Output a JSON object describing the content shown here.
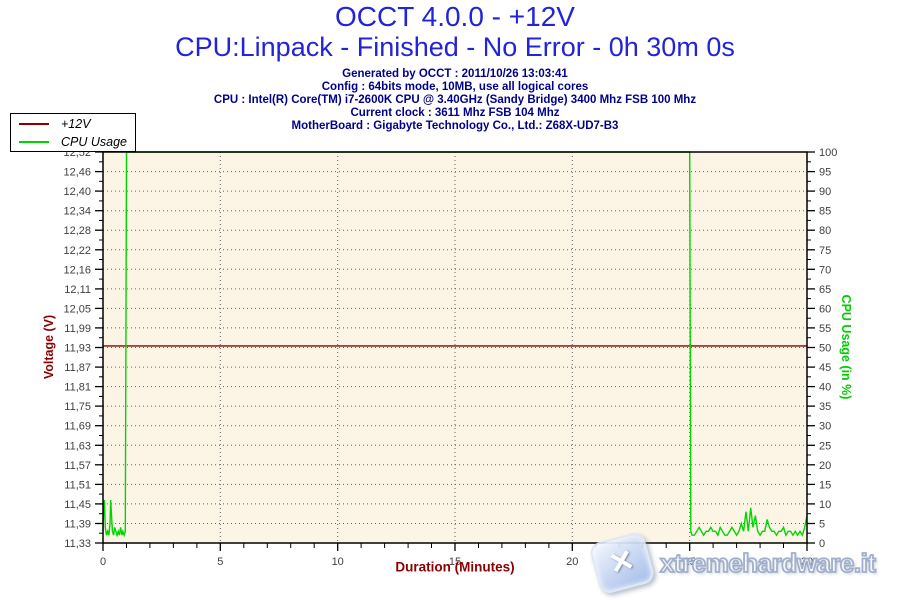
{
  "header": {
    "title": "OCCT 4.0.0 - +12V",
    "subtitle": "CPU:Linpack - Finished - No Error - 0h 30m 0s",
    "title_color": "#2323D7",
    "info_color": "#00008B",
    "info": [
      "Generated by OCCT : 2011/10/26 13:03:41",
      "Config : 64bits mode, 10MB, use all logical cores",
      "CPU : Intel(R) Core(TM) i7-2600K CPU @ 3.40GHz (Sandy Bridge) 3400 Mhz FSB 100 Mhz",
      "Current clock : 3611 Mhz FSB 104 Mhz",
      "MotherBoard : Gigabyte Technology Co., Ltd.: Z68X-UD7-B3"
    ]
  },
  "legend": {
    "items": [
      {
        "label": "+12V",
        "color": "#8B0000"
      },
      {
        "label": "CPU Usage",
        "color": "#00D500"
      }
    ]
  },
  "watermark": {
    "text": "xtremehardware.it",
    "logo": "x-logo"
  },
  "chart_data": {
    "type": "line",
    "title": "OCCT 4.0.0 - +12V",
    "plot_background": "#FCF5E6",
    "x_axis": {
      "label": "Duration (Minutes)",
      "label_color": "#8B0000",
      "range": [
        0,
        30
      ],
      "major_tick_step": 5,
      "minor_tick_step": 1,
      "major_tick_labels": [
        "0",
        "5",
        "10",
        "15",
        "20",
        "25",
        "30"
      ]
    },
    "y_left": {
      "label": "Voltage (V)",
      "label_color": "#8B0000",
      "range": [
        11.33,
        12.52
      ],
      "tick_labels_top_to_bottom": [
        "12,52",
        "12,46",
        "12,40",
        "12,34",
        "12,28",
        "12,22",
        "12,16",
        "12,11",
        "12,05",
        "11,99",
        "11,93",
        "11,87",
        "11,81",
        "11,75",
        "11,69",
        "11,63",
        "11,57",
        "11,51",
        "11,45",
        "11,39",
        "11,33"
      ]
    },
    "y_right": {
      "label": "CPU Usage (in %)",
      "label_color": "#00CC00",
      "range": [
        0,
        100
      ],
      "major_tick_step": 5,
      "tick_labels_top_to_bottom": [
        "100",
        "95",
        "90",
        "85",
        "80",
        "75",
        "70",
        "65",
        "60",
        "55",
        "50",
        "45",
        "40",
        "35",
        "30",
        "25",
        "20",
        "15",
        "10",
        "5",
        "0"
      ]
    },
    "grid": {
      "style": "dotted",
      "color": "#606060",
      "horizontal": "every labeled tick (5% / 0.06V)",
      "vertical_minutes": [
        5,
        10,
        15,
        20,
        25
      ]
    },
    "tick_label_color": "#3F3F3F",
    "series": [
      {
        "name": "+12V",
        "axis": "left",
        "color": "#8B0000",
        "x": [
          0,
          30
        ],
        "y": [
          11.93,
          11.93
        ]
      },
      {
        "name": "CPU Usage",
        "axis": "right",
        "color": "#00D500",
        "x": [
          0,
          0.03,
          0.06,
          0.1,
          0.15,
          0.2,
          0.25,
          0.3,
          0.33,
          0.4,
          0.45,
          0.5,
          0.55,
          0.6,
          0.65,
          0.7,
          0.75,
          0.8,
          0.85,
          0.9,
          0.95,
          1,
          25,
          25.05,
          25.1,
          25.2,
          25.3,
          25.4,
          25.5,
          25.6,
          25.7,
          25.8,
          25.9,
          26,
          26.1,
          26.2,
          26.3,
          26.4,
          26.5,
          26.6,
          26.7,
          26.8,
          26.9,
          27,
          27.1,
          27.2,
          27.3,
          27.4,
          27.5,
          27.6,
          27.7,
          27.8,
          27.9,
          28,
          28.1,
          28.2,
          28.3,
          28.4,
          28.5,
          28.6,
          28.7,
          28.8,
          28.9,
          29,
          29.1,
          29.2,
          29.3,
          29.4,
          29.5,
          29.6,
          29.7,
          29.8,
          29.9,
          30
        ],
        "y": [
          3,
          9,
          11,
          4,
          2,
          3,
          2,
          5,
          11,
          3,
          2,
          4,
          3,
          2,
          3,
          2,
          4,
          2,
          3,
          2,
          3,
          100,
          100,
          3,
          2,
          2,
          3,
          4,
          3,
          2,
          3,
          3,
          4,
          3,
          3,
          2,
          4,
          3,
          2,
          2,
          3,
          4,
          3,
          2,
          3,
          5,
          3,
          8,
          3,
          9,
          4,
          7,
          3,
          2,
          3,
          3,
          6,
          4,
          3,
          3,
          2,
          3,
          3,
          4,
          2,
          3,
          3,
          2,
          3,
          2,
          3,
          2,
          4,
          7
        ]
      }
    ]
  }
}
